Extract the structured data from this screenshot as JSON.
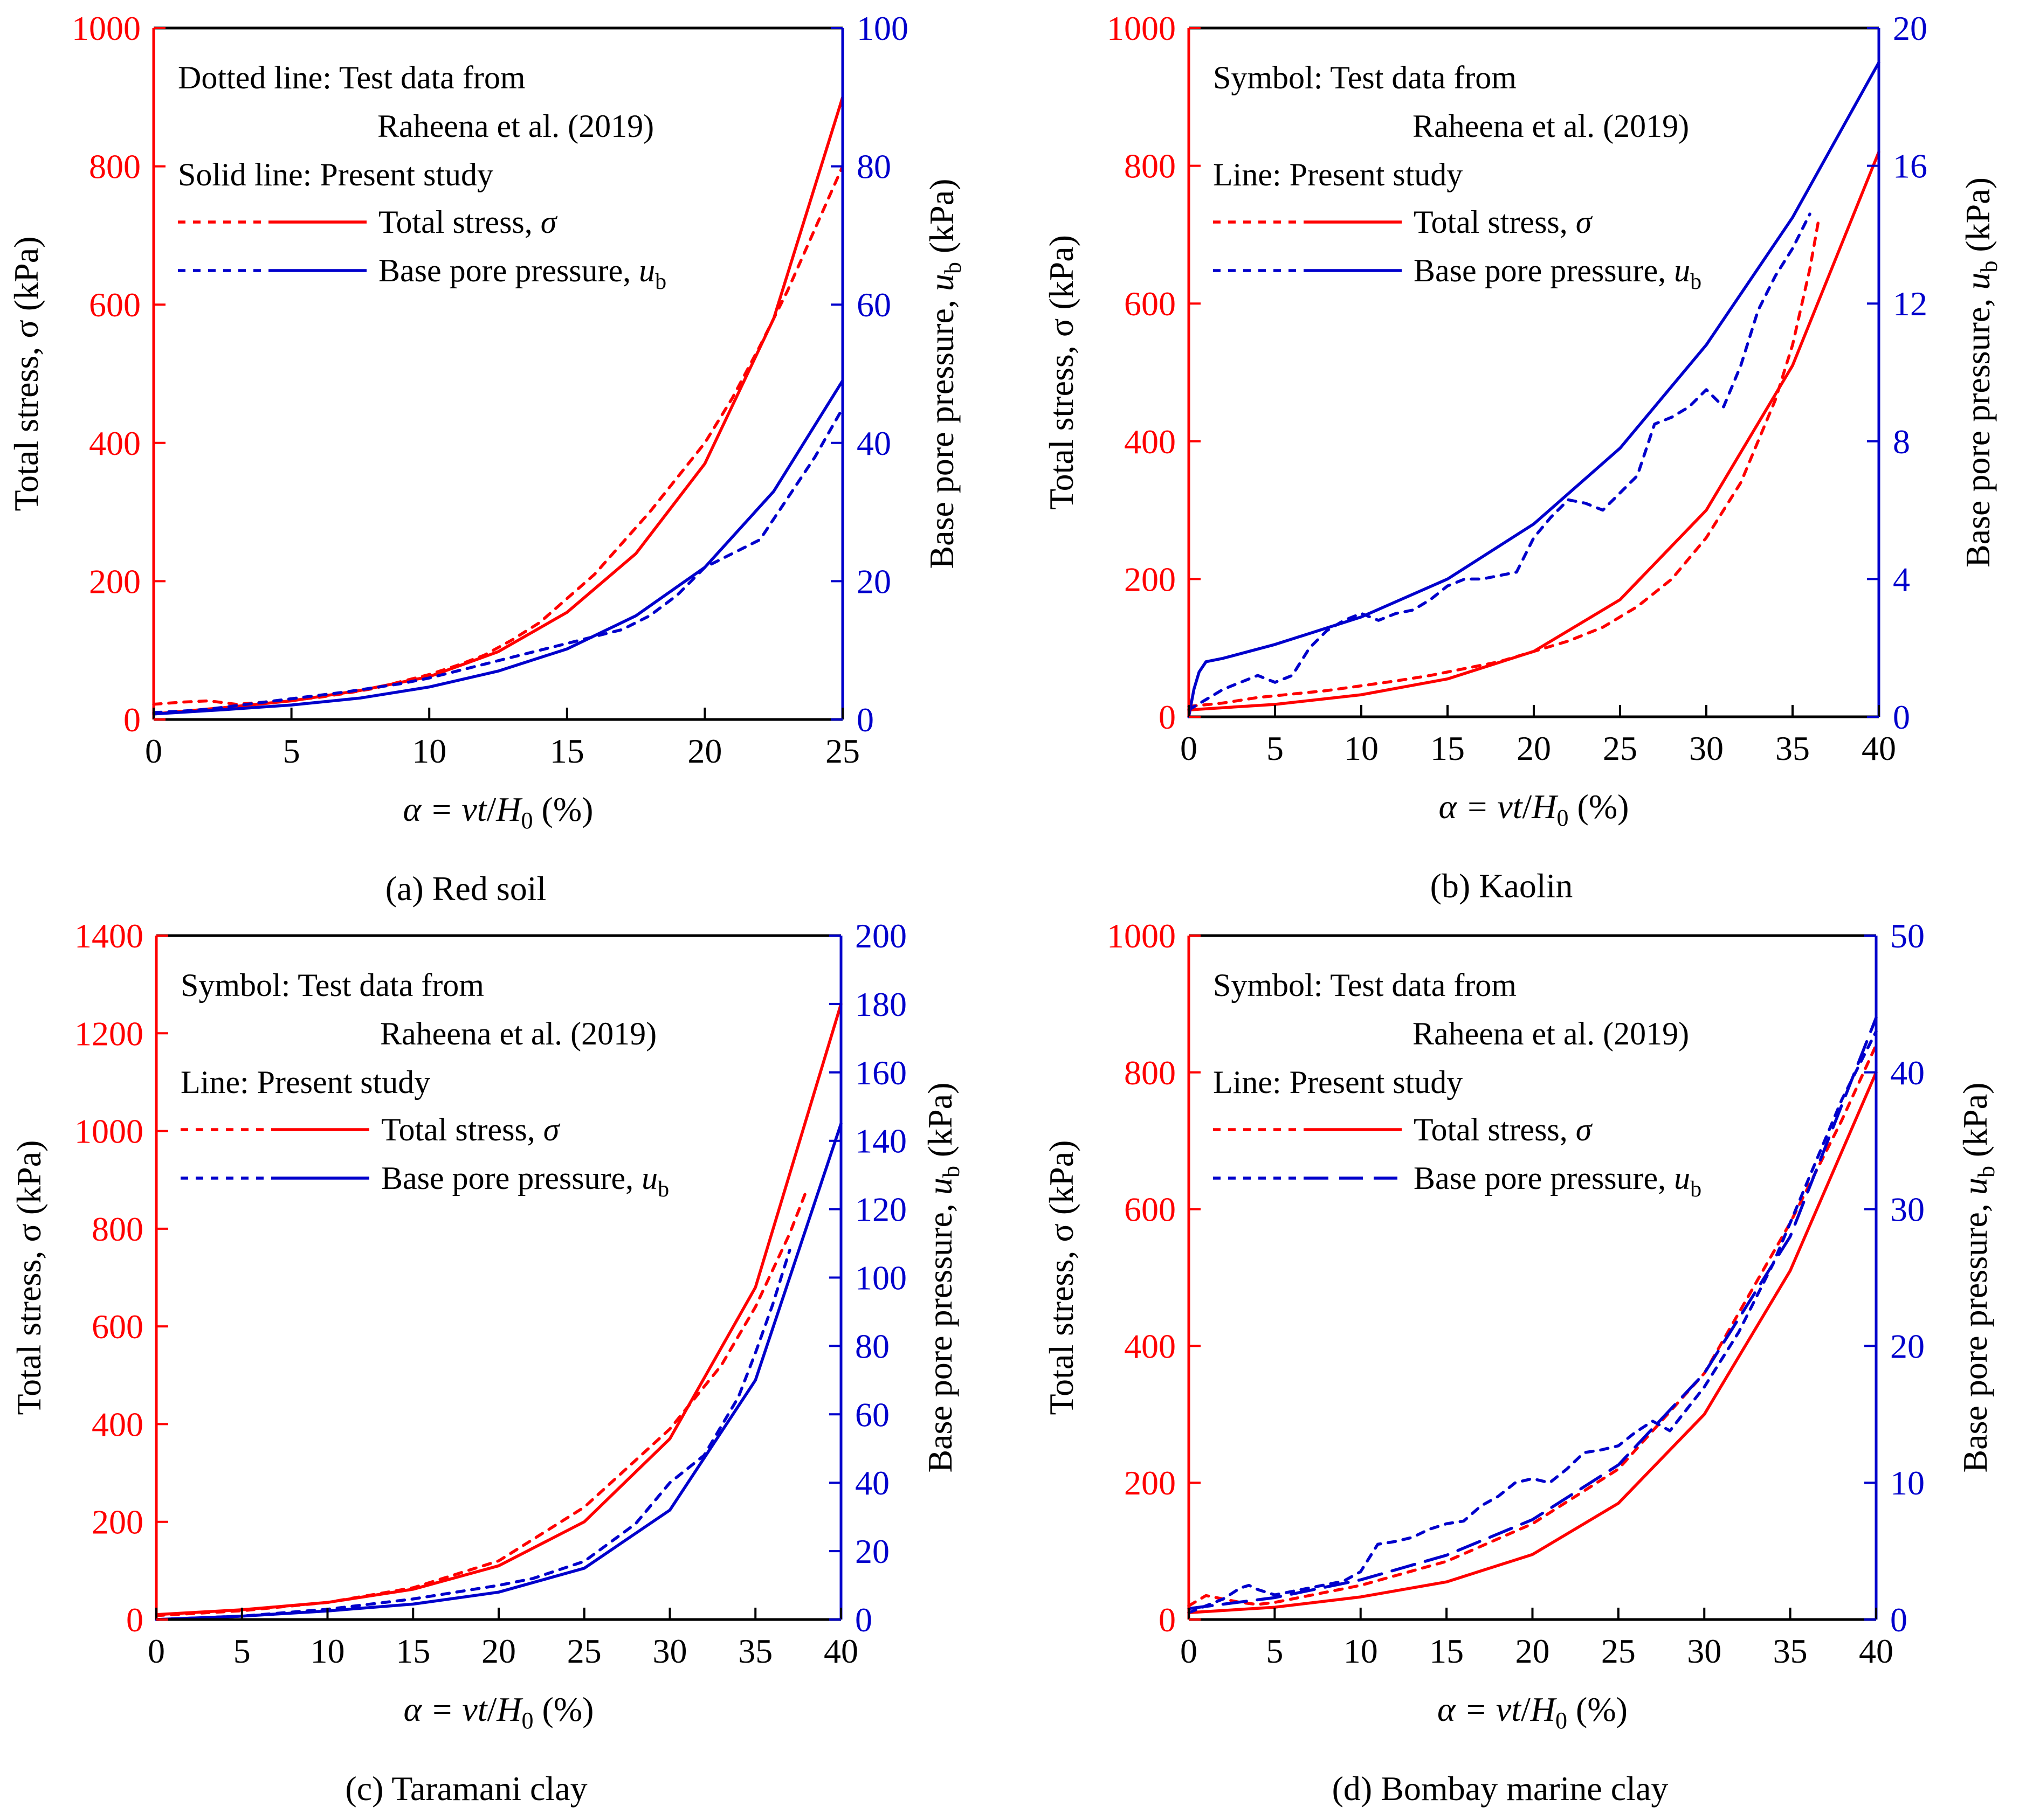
{
  "colors": {
    "total_stress": "#ff0000",
    "pore_pressure": "#0000cc",
    "axis": "#000000"
  },
  "chart_data": [
    {
      "type": "line",
      "caption": "(a) Red soil",
      "xlabel_prefix": "α = ",
      "xlabel_vt": "vt",
      "xlabel_slash": "/",
      "xlabel_H": "H",
      "xlabel_sub": "0",
      "xlabel_suffix": " (%)",
      "ylabel_left": "Total stress, σ (kPa)",
      "ylabel_right_pre": "Base pore pressure, ",
      "ylabel_right_u": "u",
      "ylabel_right_sub": "b",
      "ylabel_right_post": " (kPa)",
      "xlim": [
        0,
        25
      ],
      "xticks": [
        0,
        5,
        10,
        15,
        20,
        25
      ],
      "ylim_left": [
        0,
        1000
      ],
      "yticks_left": [
        0,
        200,
        400,
        600,
        800,
        1000
      ],
      "ylim_right": [
        0,
        100
      ],
      "yticks_right": [
        0,
        20,
        40,
        60,
        80,
        100
      ],
      "annotations": [
        "Dotted line: Test data from",
        "Raheena et al. (2019)",
        "Solid line: Present study"
      ],
      "legend": [
        {
          "name": "Total stress, ",
          "symbol": "σ",
          "sub": ""
        },
        {
          "name": "Base pore pressure, ",
          "symbol": "u",
          "sub": "b"
        }
      ],
      "series": [
        {
          "name": "Total stress, σ (test)",
          "axis": "left",
          "style": "dotted",
          "color": "#ff0000",
          "x": [
            0,
            1,
            2,
            3,
            4,
            5,
            6,
            7,
            8,
            9,
            10,
            11,
            12,
            13,
            14,
            15,
            16,
            17,
            18,
            19,
            20,
            21,
            22,
            23,
            24,
            25
          ],
          "y": [
            22,
            25,
            27,
            22,
            25,
            28,
            32,
            38,
            45,
            55,
            65,
            78,
            93,
            115,
            140,
            175,
            210,
            255,
            300,
            350,
            400,
            465,
            540,
            620,
            710,
            800
          ]
        },
        {
          "name": "Total stress, σ (present)",
          "axis": "left",
          "style": "solid",
          "color": "#ff0000",
          "x": [
            0,
            2.5,
            5,
            7.5,
            10,
            12.5,
            15,
            17.5,
            20,
            22.5,
            25
          ],
          "y": [
            8,
            17,
            27,
            42,
            62,
            98,
            155,
            240,
            370,
            580,
            900
          ]
        },
        {
          "name": "Base pore pressure, ub (test)",
          "axis": "right",
          "style": "dotted",
          "color": "#0000cc",
          "x": [
            0,
            1,
            2,
            3,
            4,
            5,
            6,
            7,
            8,
            9,
            10,
            11,
            12,
            13,
            14,
            15,
            16,
            17,
            18,
            19,
            20,
            21,
            22,
            23,
            24,
            25
          ],
          "y": [
            1,
            1.2,
            1.5,
            2,
            2.5,
            3,
            3.5,
            4,
            4.6,
            5.2,
            6,
            7,
            8,
            9,
            10,
            11,
            12,
            13,
            15,
            18,
            22,
            24,
            26,
            32,
            38,
            45
          ]
        },
        {
          "name": "Base pore pressure, ub (present)",
          "axis": "right",
          "style": "solid",
          "color": "#0000cc",
          "x": [
            0,
            2.5,
            5,
            7.5,
            10,
            12.5,
            15,
            17.5,
            20,
            22.5,
            25
          ],
          "y": [
            0.8,
            1.4,
            2.1,
            3.1,
            4.7,
            7,
            10.2,
            15,
            22,
            33,
            49
          ]
        }
      ]
    },
    {
      "type": "line",
      "caption": "(b) Kaolin",
      "xlabel_prefix": "α = ",
      "xlabel_vt": "vt",
      "xlabel_slash": "/",
      "xlabel_H": "H",
      "xlabel_sub": "0",
      "xlabel_suffix": " (%)",
      "ylabel_left": "Total stress, σ (kPa)",
      "ylabel_right_pre": "Base pore pressure, ",
      "ylabel_right_u": "u",
      "ylabel_right_sub": "b",
      "ylabel_right_post": " (kPa)",
      "xlim": [
        0,
        40
      ],
      "xticks": [
        0,
        5,
        10,
        15,
        20,
        25,
        30,
        35,
        40
      ],
      "ylim_left": [
        0,
        1000
      ],
      "yticks_left": [
        0,
        200,
        400,
        600,
        800,
        1000
      ],
      "ylim_right": [
        0,
        20
      ],
      "yticks_right": [
        0,
        4,
        8,
        12,
        16,
        20
      ],
      "annotations": [
        "Symbol: Test data from",
        "Raheena et al. (2019)",
        "Line: Present study"
      ],
      "legend": [
        {
          "name": "Total stress, ",
          "symbol": "σ",
          "sub": ""
        },
        {
          "name": "Base pore pressure, ",
          "symbol": "u",
          "sub": "b"
        }
      ],
      "series": [
        {
          "name": "Total stress, σ (test)",
          "axis": "left",
          "style": "dotted",
          "color": "#ff0000",
          "x": [
            0,
            2,
            4,
            6,
            8,
            10,
            12,
            14,
            16,
            18,
            20,
            22,
            24,
            26,
            28,
            30,
            32,
            34,
            35,
            36,
            36.5
          ],
          "y": [
            15,
            20,
            28,
            33,
            38,
            45,
            52,
            60,
            70,
            80,
            95,
            110,
            130,
            160,
            200,
            260,
            340,
            460,
            540,
            650,
            720
          ]
        },
        {
          "name": "Total stress, σ (present)",
          "axis": "left",
          "style": "solid",
          "color": "#ff0000",
          "x": [
            0,
            5,
            10,
            15,
            20,
            25,
            30,
            35,
            40
          ],
          "y": [
            10,
            18,
            32,
            55,
            95,
            170,
            300,
            510,
            820
          ]
        },
        {
          "name": "Base pore pressure, ub (test)",
          "axis": "right",
          "style": "dotted",
          "color": "#0000cc",
          "x": [
            0,
            1,
            2,
            3,
            4,
            5,
            6,
            7,
            8,
            9,
            10,
            11,
            12,
            13,
            14,
            15,
            16,
            17,
            18,
            19,
            20,
            21,
            22,
            23,
            24,
            25,
            26,
            27,
            28,
            29,
            30,
            31,
            32,
            33,
            34,
            35,
            36
          ],
          "y": [
            0.2,
            0.5,
            0.8,
            1.0,
            1.2,
            1.0,
            1.2,
            2.0,
            2.5,
            2.8,
            3.0,
            2.8,
            3.0,
            3.1,
            3.4,
            3.8,
            4.0,
            4.0,
            4.1,
            4.2,
            5.2,
            5.8,
            6.3,
            6.2,
            6.0,
            6.5,
            7.0,
            8.5,
            8.7,
            9.0,
            9.5,
            9.0,
            10.2,
            11.8,
            12.8,
            13.6,
            14.6
          ]
        },
        {
          "name": "Base pore pressure, ub (present)",
          "axis": "right",
          "style": "solid",
          "color": "#0000cc",
          "x": [
            0,
            0.3,
            0.6,
            1,
            2,
            5,
            10,
            15,
            20,
            25,
            30,
            35,
            40
          ],
          "y": [
            0,
            0.8,
            1.3,
            1.6,
            1.7,
            2.1,
            2.9,
            4.0,
            5.6,
            7.8,
            10.8,
            14.5,
            19
          ]
        }
      ]
    },
    {
      "type": "line",
      "caption": "(c) Taramani clay",
      "xlabel_prefix": "α = ",
      "xlabel_vt": "vt",
      "xlabel_slash": "/",
      "xlabel_H": "H",
      "xlabel_sub": "0",
      "xlabel_suffix": " (%)",
      "ylabel_left": "Total stress, σ (kPa)",
      "ylabel_right_pre": "Base pore pressure, ",
      "ylabel_right_u": "u",
      "ylabel_right_sub": "b",
      "ylabel_right_post": " (kPa)",
      "xlim": [
        0,
        40
      ],
      "xticks": [
        0,
        5,
        10,
        15,
        20,
        25,
        30,
        35,
        40
      ],
      "ylim_left": [
        0,
        1400
      ],
      "yticks_left": [
        0,
        200,
        400,
        600,
        800,
        1000,
        1200,
        1400
      ],
      "ylim_right": [
        0,
        200
      ],
      "yticks_right": [
        0,
        20,
        40,
        60,
        80,
        100,
        120,
        140,
        160,
        180,
        200
      ],
      "annotations": [
        "Symbol: Test data from",
        "Raheena et al. (2019)",
        "Line: Present study"
      ],
      "legend": [
        {
          "name": "Total stress, ",
          "symbol": "σ",
          "sub": ""
        },
        {
          "name": "Base pore pressure, ",
          "symbol": "u",
          "sub": "b"
        }
      ],
      "series": [
        {
          "name": "Total stress, σ (test)",
          "axis": "left",
          "style": "dotted",
          "color": "#ff0000",
          "x": [
            0,
            5,
            10,
            15,
            20,
            25,
            30,
            33,
            35,
            37,
            38
          ],
          "y": [
            8,
            18,
            35,
            65,
            120,
            230,
            390,
            520,
            640,
            790,
            880
          ]
        },
        {
          "name": "Total stress, σ (present)",
          "axis": "left",
          "style": "solid",
          "color": "#ff0000",
          "x": [
            0,
            5,
            10,
            15,
            20,
            25,
            30,
            35,
            40
          ],
          "y": [
            10,
            20,
            35,
            62,
            110,
            200,
            370,
            680,
            1260
          ]
        },
        {
          "name": "Base pore pressure, ub (test)",
          "axis": "right",
          "style": "dotted",
          "color": "#0000cc",
          "x": [
            0,
            5,
            10,
            15,
            20,
            22,
            25,
            28,
            30,
            32,
            34,
            35,
            36,
            37
          ],
          "y": [
            0,
            1,
            3,
            6,
            10,
            12,
            17,
            28,
            40,
            48,
            65,
            78,
            92,
            108
          ]
        },
        {
          "name": "Base pore pressure, ub (present)",
          "axis": "right",
          "style": "solid",
          "color": "#0000cc",
          "x": [
            0,
            5,
            10,
            15,
            20,
            25,
            30,
            35,
            40
          ],
          "y": [
            0,
            1,
            2.5,
            4.5,
            8,
            15,
            32,
            70,
            145
          ]
        }
      ]
    },
    {
      "type": "line",
      "caption": "(d) Bombay marine clay",
      "xlabel_prefix": "α = ",
      "xlabel_vt": "vt",
      "xlabel_slash": "/",
      "xlabel_H": "H",
      "xlabel_sub": "0",
      "xlabel_suffix": " (%)",
      "ylabel_left": "Total stress, σ (kPa)",
      "ylabel_right_pre": "Base pore pressure, ",
      "ylabel_right_u": "u",
      "ylabel_right_sub": "b",
      "ylabel_right_post": " (kPa)",
      "xlim": [
        0,
        40
      ],
      "xticks": [
        0,
        5,
        10,
        15,
        20,
        25,
        30,
        35,
        40
      ],
      "ylim_left": [
        0,
        1000
      ],
      "yticks_left": [
        0,
        200,
        400,
        600,
        800,
        1000
      ],
      "ylim_right": [
        0,
        50
      ],
      "yticks_right": [
        0,
        10,
        20,
        30,
        40,
        50
      ],
      "annotations": [
        "Symbol: Test data from",
        "Raheena et al. (2019)",
        "Line: Present study"
      ],
      "legend": [
        {
          "name": "Total stress, ",
          "symbol": "σ",
          "sub": ""
        },
        {
          "name": "Base pore pressure, ",
          "symbol": "u",
          "sub": "b"
        }
      ],
      "series": [
        {
          "name": "Total stress, σ (test)",
          "axis": "left",
          "style": "dotted",
          "color": "#ff0000",
          "x": [
            0,
            1,
            2,
            3,
            4,
            5,
            10,
            15,
            20,
            25,
            30,
            35,
            38,
            40
          ],
          "y": [
            20,
            35,
            30,
            25,
            22,
            25,
            50,
            85,
            140,
            220,
            360,
            580,
            730,
            840
          ]
        },
        {
          "name": "Total stress, σ (present)",
          "axis": "left",
          "style": "solid",
          "color": "#ff0000",
          "x": [
            0,
            5,
            10,
            15,
            20,
            25,
            30,
            35,
            40
          ],
          "y": [
            10,
            18,
            33,
            55,
            95,
            170,
            300,
            510,
            800
          ]
        },
        {
          "name": "Base pore pressure, ub (test)",
          "axis": "right",
          "style": "dotted",
          "color": "#0000cc",
          "x": [
            0,
            1,
            2,
            3,
            3.5,
            4,
            5,
            7,
            9,
            10,
            11,
            12,
            13,
            14,
            15,
            16,
            17,
            18,
            19,
            20,
            21,
            22,
            23,
            24,
            25,
            26,
            27,
            28,
            30,
            32,
            34,
            36,
            38,
            40
          ],
          "y": [
            0.5,
            1,
            1.5,
            2.3,
            2.5,
            2.2,
            1.8,
            2.3,
            2.8,
            3.5,
            5.5,
            5.7,
            6.0,
            6.6,
            7.0,
            7.2,
            8.3,
            9.0,
            10.0,
            10.3,
            10.0,
            11.0,
            12.2,
            12.4,
            12.7,
            13.7,
            14.5,
            13.8,
            17.0,
            21.0,
            26.0,
            32.0,
            38.0,
            43.0
          ]
        },
        {
          "name": "Base pore pressure, ub (present)",
          "axis": "right",
          "style": "dashed",
          "color": "#0000cc",
          "x": [
            0,
            5,
            10,
            15,
            20,
            25,
            30,
            35,
            40
          ],
          "y": [
            0.8,
            1.6,
            2.9,
            4.7,
            7.3,
            11.3,
            18.0,
            28.0,
            44.0
          ]
        }
      ]
    }
  ]
}
